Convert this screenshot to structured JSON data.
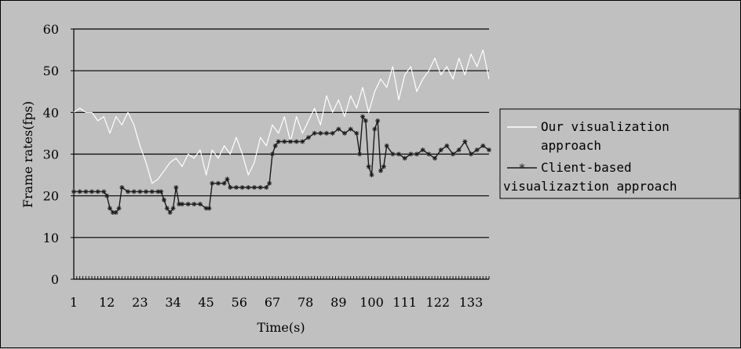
{
  "chart_data": {
    "type": "line",
    "title": "",
    "xlabel": "Time(s)",
    "ylabel": "Frame rates(fps)",
    "ylim": [
      0,
      60
    ],
    "yticks": [
      0,
      10,
      20,
      30,
      40,
      50,
      60
    ],
    "xlim": [
      1,
      139
    ],
    "xticks": [
      "1",
      "12",
      "23",
      "34",
      "45",
      "56",
      "67",
      "78",
      "89",
      "100",
      "111",
      "122",
      "133"
    ],
    "grid": "horizontal",
    "legend_position": "right",
    "series": [
      {
        "name": "Our visualization approach",
        "color": "#ffffff",
        "marker": "none",
        "x": [
          1,
          3,
          5,
          7,
          9,
          11,
          13,
          15,
          17,
          19,
          21,
          23,
          25,
          27,
          29,
          31,
          33,
          35,
          37,
          39,
          41,
          43,
          45,
          47,
          49,
          51,
          53,
          55,
          57,
          59,
          61,
          63,
          65,
          67,
          69,
          71,
          73,
          75,
          77,
          79,
          81,
          83,
          85,
          87,
          89,
          91,
          93,
          95,
          97,
          99,
          101,
          103,
          105,
          107,
          109,
          111,
          113,
          115,
          117,
          119,
          121,
          123,
          125,
          127,
          129,
          131,
          133,
          135,
          137,
          139
        ],
        "y": [
          40,
          41,
          40,
          40,
          38,
          39,
          35,
          39,
          37,
          40,
          37,
          32,
          28,
          23,
          24,
          26,
          28,
          29,
          27,
          30,
          29,
          31,
          25,
          31,
          29,
          32,
          30,
          34,
          30,
          25,
          28,
          34,
          32,
          37,
          35,
          39,
          33,
          39,
          35,
          38,
          41,
          37,
          44,
          40,
          43,
          39,
          44,
          41,
          46,
          40,
          45,
          48,
          46,
          51,
          43,
          49,
          51,
          45,
          48,
          50,
          53,
          49,
          51,
          48,
          53,
          49,
          54,
          51,
          55,
          48
        ]
      },
      {
        "name": "Client-based visualizaztion approach",
        "color": "#1a1a1a",
        "marker": "star",
        "x": [
          1,
          3,
          5,
          7,
          9,
          11,
          12,
          13,
          14,
          15,
          16,
          17,
          19,
          21,
          23,
          25,
          27,
          29,
          30,
          31,
          32,
          33,
          34,
          35,
          36,
          37,
          39,
          41,
          43,
          45,
          46,
          47,
          49,
          51,
          52,
          53,
          55,
          57,
          59,
          61,
          63,
          65,
          66,
          67,
          68,
          69,
          71,
          73,
          75,
          77,
          79,
          81,
          83,
          85,
          87,
          89,
          91,
          93,
          95,
          96,
          97,
          98,
          99,
          100,
          101,
          102,
          103,
          104,
          105,
          107,
          109,
          111,
          113,
          115,
          117,
          119,
          121,
          123,
          125,
          127,
          129,
          131,
          133,
          135,
          137,
          139
        ],
        "y": [
          21,
          21,
          21,
          21,
          21,
          21,
          20,
          17,
          16,
          16,
          17,
          22,
          21,
          21,
          21,
          21,
          21,
          21,
          21,
          19,
          17,
          16,
          17,
          22,
          18,
          18,
          18,
          18,
          18,
          17,
          17,
          23,
          23,
          23,
          24,
          22,
          22,
          22,
          22,
          22,
          22,
          22,
          23,
          30,
          32,
          33,
          33,
          33,
          33,
          33,
          34,
          35,
          35,
          35,
          35,
          36,
          35,
          36,
          35,
          30,
          39,
          38,
          27,
          25,
          36,
          38,
          26,
          27,
          32,
          30,
          30,
          29,
          30,
          30,
          31,
          30,
          29,
          31,
          32,
          30,
          31,
          33,
          30,
          31,
          32,
          31
        ]
      }
    ]
  }
}
